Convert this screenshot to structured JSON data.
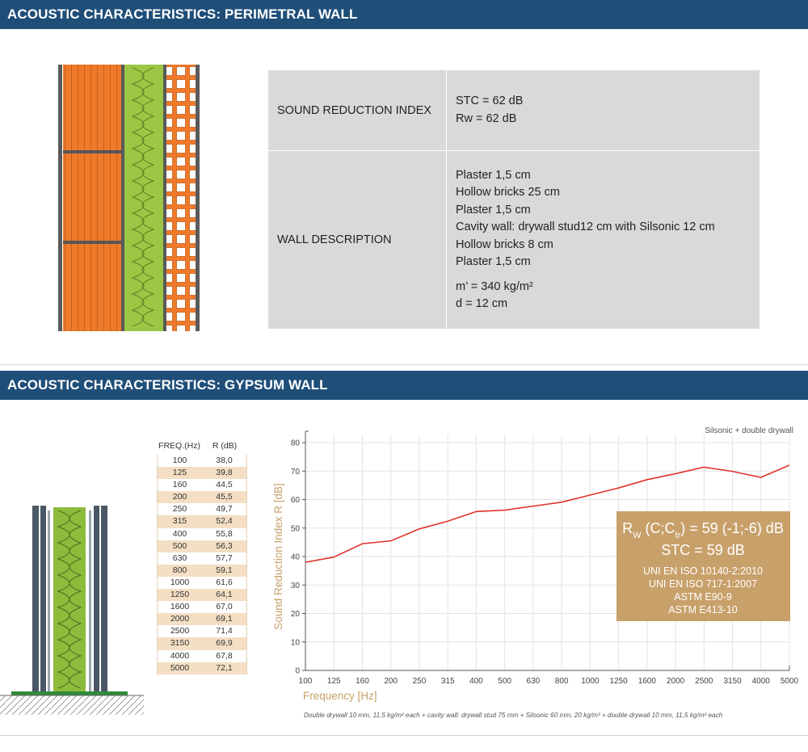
{
  "sections": {
    "perimetral": {
      "title": "ACOUSTIC CHARACTERISTICS: PERIMETRAL WALL"
    },
    "gypsum": {
      "title": "ACOUSTIC CHARACTERISTICS: GYPSUM WALL"
    }
  },
  "spec": {
    "sound_label": "SOUND REDUCTION INDEX",
    "stc": "STC = 62 dB",
    "rw": "Rw = 62 dB",
    "wall_label": "WALL DESCRIPTION",
    "layers": [
      "Plaster 1,5 cm",
      "Hollow bricks 25 cm",
      "Plaster 1,5 cm",
      "Cavity wall: drywall stud12 cm with Silsonic 12 cm",
      "Hollow bricks 8 cm",
      "Plaster 1,5 cm"
    ],
    "mass": "m’ = 340 kg/m²",
    "thickness": "d = 12 cm"
  },
  "freq_table": {
    "head_freq": "FREQ.(Hz)",
    "head_r": "R (dB)",
    "rows": [
      [
        "100",
        "38,0"
      ],
      [
        "125",
        "39,8"
      ],
      [
        "160",
        "44,5"
      ],
      [
        "200",
        "45,5"
      ],
      [
        "250",
        "49,7"
      ],
      [
        "315",
        "52,4"
      ],
      [
        "400",
        "55,8"
      ],
      [
        "500",
        "56,3"
      ],
      [
        "630",
        "57,7"
      ],
      [
        "800",
        "59,1"
      ],
      [
        "1000",
        "61,6"
      ],
      [
        "1250",
        "64,1"
      ],
      [
        "1600",
        "67,0"
      ],
      [
        "2000",
        "69,1"
      ],
      [
        "2500",
        "71,4"
      ],
      [
        "3150",
        "69,9"
      ],
      [
        "4000",
        "67,8"
      ],
      [
        "5000",
        "72,1"
      ]
    ]
  },
  "chart_data": {
    "type": "line",
    "legend": "Silsonic + double drywall",
    "xlabel": "Frequency [Hz]",
    "ylabel": "Sound Reduction Index R [dB]",
    "categories": [
      "100",
      "125",
      "160",
      "200",
      "250",
      "315",
      "400",
      "500",
      "630",
      "800",
      "1000",
      "1250",
      "1600",
      "2000",
      "2500",
      "3150",
      "4000",
      "5000"
    ],
    "values": [
      38.0,
      39.8,
      44.5,
      45.5,
      49.7,
      52.4,
      55.8,
      56.3,
      57.7,
      59.1,
      61.6,
      64.1,
      67.0,
      69.1,
      71.4,
      69.9,
      67.8,
      72.1
    ],
    "ylim": [
      0,
      80
    ],
    "yticks": [
      "0",
      "10",
      "20",
      "30",
      "40",
      "50",
      "60",
      "70",
      "80"
    ],
    "grid": true,
    "line_color": "#e0342c",
    "caption": "Double drywall 10 mm, 11,5 kg/m² each + cavity wall: drywall stud 75 mm + Silsonic 60 mm, 20 kg/m³ + double drywall 10 mm, 11,5 kg/m² each",
    "result_box": {
      "rw_main": "R",
      "rw_sub": "W",
      "rw_c": " (C;C",
      "rw_ctr": "tr",
      "rw_value": ") = 59 (-1;-6) dB",
      "stc": "STC = 59 dB",
      "standards": [
        "UNI EN ISO 10140-2:2010",
        "UNI EN ISO 717-1:2007",
        "ASTM E90-9",
        "ASTM E413-10"
      ],
      "bg_color": "#c8a06a"
    }
  },
  "colors": {
    "header": "#1f4e79",
    "brick": "#ee7a2a",
    "insulation": "#8dbb3c",
    "stud": "#4a5866"
  }
}
